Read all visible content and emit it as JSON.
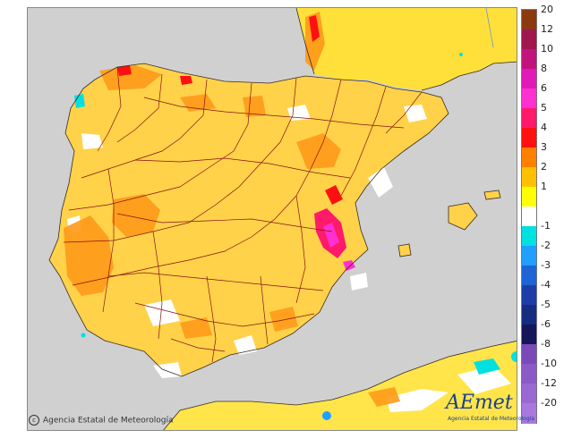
{
  "legend": {
    "labels": [
      "20",
      "12",
      "10",
      "8",
      "6",
      "5",
      "4",
      "3",
      "2",
      "1",
      "-1",
      "-2",
      "-3",
      "-4",
      "-5",
      "-6",
      "-8",
      "-10",
      "-12",
      "-20"
    ],
    "colors": [
      "#8b3a10",
      "#a0174f",
      "#c2137d",
      "#e21ab7",
      "#ff30d0",
      "#ff1a6a",
      "#ff1010",
      "#ff7f00",
      "#ffc000",
      "#ffff00",
      "#ffffff",
      "#00e0e0",
      "#1f9fff",
      "#1e64d4",
      "#1d3ea8",
      "#162c80",
      "#14175a",
      "#7a4bb8",
      "#8c5ac8",
      "#9a68d2",
      "#a878de"
    ]
  },
  "map": {
    "sea_color": "#d0d0d0",
    "land_base_color": "#ffd24a"
  },
  "footer": {
    "copyright_symbol": "c",
    "copyright": "Agencia Estatal de Meteorología",
    "logo": "AEmet",
    "logo_sub": "Agencia Estatal de Meteorología"
  }
}
